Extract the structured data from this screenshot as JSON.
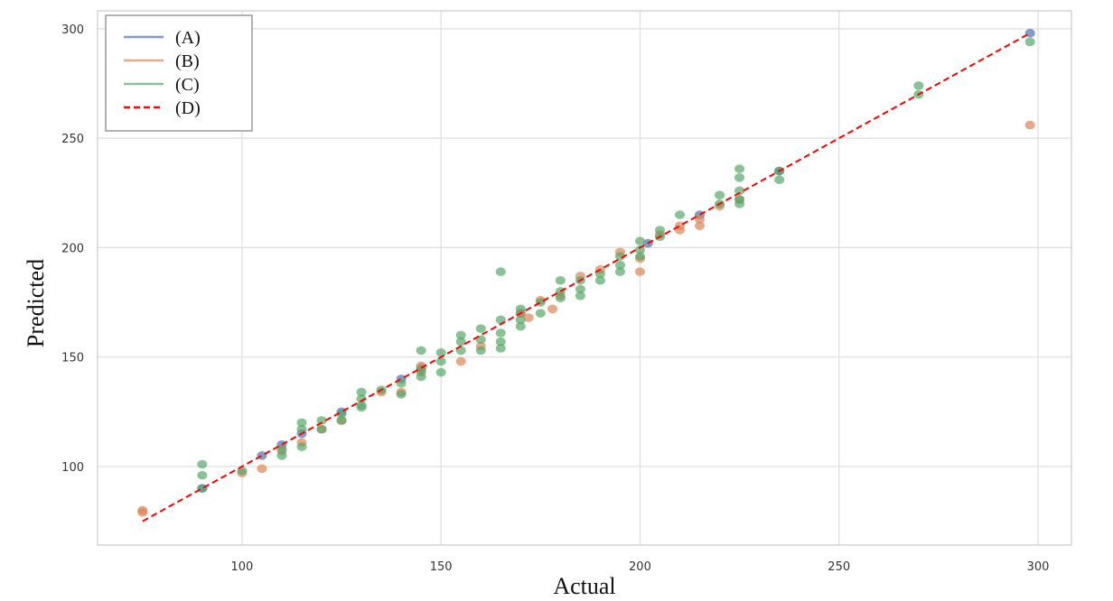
{
  "chart_data": {
    "type": "scatter",
    "x_label": "Actual",
    "y_label": "Predicted",
    "xlim": [
      63.7,
      308.4
    ],
    "ylim": [
      64.1,
      308.2
    ],
    "xticks": [
      100,
      150,
      200,
      250,
      300
    ],
    "yticks": [
      100,
      150,
      200,
      250,
      300
    ],
    "grid": true,
    "legend": "upper left",
    "series": [
      {
        "name": "(A)",
        "color": "#4c72b0",
        "mode": "markers",
        "x": [
          90,
          105,
          110,
          115,
          125,
          140,
          145,
          170,
          202,
          215,
          235,
          298
        ],
        "values": [
          90,
          105,
          110,
          115,
          125,
          140,
          145,
          170,
          202,
          215,
          235,
          298
        ]
      },
      {
        "name": "(B)",
        "color": "#dd8452",
        "mode": "markers",
        "x": [
          75,
          75,
          100,
          105,
          110,
          115,
          120,
          125,
          135,
          140,
          145,
          145,
          155,
          160,
          170,
          172,
          175,
          178,
          180,
          185,
          190,
          195,
          200,
          200,
          205,
          210,
          210,
          215,
          215,
          220,
          225,
          298
        ],
        "values": [
          79,
          80,
          97,
          99,
          107,
          111,
          117,
          121,
          134,
          134,
          143,
          146,
          148,
          155,
          170,
          168,
          176,
          172,
          178,
          187,
          190,
          198,
          189,
          195,
          206,
          208,
          210,
          210,
          213,
          219,
          222,
          256
        ]
      },
      {
        "name": "(C)",
        "color": "#55a868",
        "mode": "markers",
        "x": [
          90,
          90,
          90,
          100,
          110,
          110,
          115,
          115,
          115,
          120,
          120,
          125,
          125,
          130,
          130,
          130,
          130,
          135,
          140,
          140,
          145,
          145,
          145,
          150,
          150,
          150,
          155,
          155,
          155,
          160,
          160,
          160,
          165,
          165,
          165,
          165,
          165,
          170,
          170,
          170,
          175,
          175,
          180,
          180,
          180,
          185,
          185,
          185,
          190,
          190,
          195,
          195,
          195,
          200,
          200,
          200,
          205,
          205,
          210,
          220,
          220,
          225,
          225,
          225,
          225,
          225,
          235,
          235,
          270,
          270,
          298
        ],
        "values": [
          101,
          96,
          90,
          98,
          105,
          108,
          120,
          117,
          109,
          121,
          117,
          124,
          121,
          134,
          131,
          128,
          127,
          135,
          138,
          133,
          153,
          141,
          144,
          152,
          148,
          143,
          160,
          157,
          153,
          163,
          158,
          153,
          189,
          167,
          161,
          157,
          154,
          172,
          167,
          164,
          175,
          170,
          185,
          180,
          177,
          185,
          181,
          178,
          188,
          185,
          196,
          192,
          189,
          203,
          199,
          196,
          208,
          205,
          215,
          224,
          220,
          236,
          232,
          226,
          222,
          220,
          235,
          231,
          274,
          270,
          294
        ]
      },
      {
        "name": "(D)",
        "color": "#ff0000",
        "mode": "dashed-line",
        "x": [
          75,
          298
        ],
        "values": [
          75,
          298
        ]
      }
    ]
  }
}
